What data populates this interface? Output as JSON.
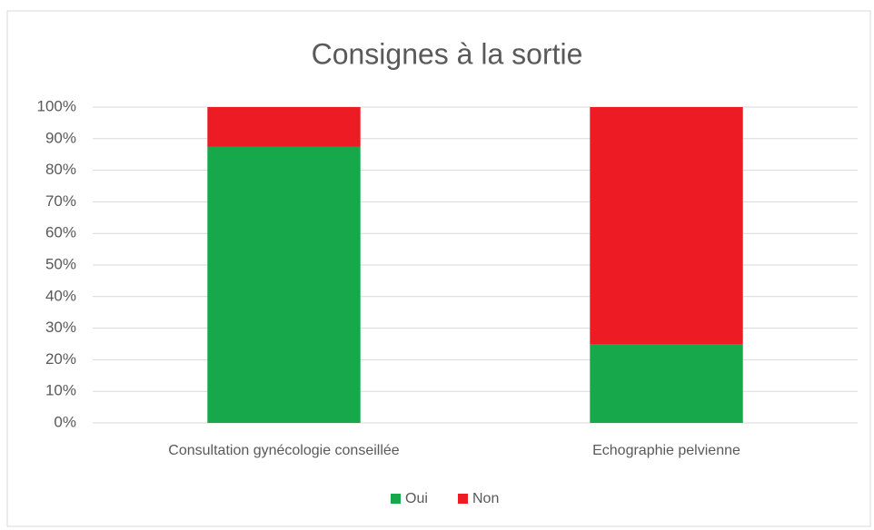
{
  "chart_data": {
    "type": "stacked_bar",
    "title": "Consignes à la sortie",
    "categories": [
      "Consultation gynécologie conseillée",
      "Echographie pelvienne"
    ],
    "series": [
      {
        "name": "Oui",
        "color": "#16a84b",
        "values": [
          87.5,
          25
        ]
      },
      {
        "name": "Non",
        "color": "#ed1c24",
        "values": [
          12.5,
          75
        ]
      }
    ],
    "ylim": [
      0,
      100
    ],
    "yticks": [
      {
        "value": 0,
        "label": "0%"
      },
      {
        "value": 10,
        "label": "10%"
      },
      {
        "value": 20,
        "label": "20%"
      },
      {
        "value": 30,
        "label": "30%"
      },
      {
        "value": 40,
        "label": "40%"
      },
      {
        "value": 50,
        "label": "50%"
      },
      {
        "value": 60,
        "label": "60%"
      },
      {
        "value": 70,
        "label": "70%"
      },
      {
        "value": 80,
        "label": "80%"
      },
      {
        "value": 90,
        "label": "90%"
      },
      {
        "value": 100,
        "label": "100%"
      }
    ],
    "grid": true,
    "legend": "bottom"
  }
}
